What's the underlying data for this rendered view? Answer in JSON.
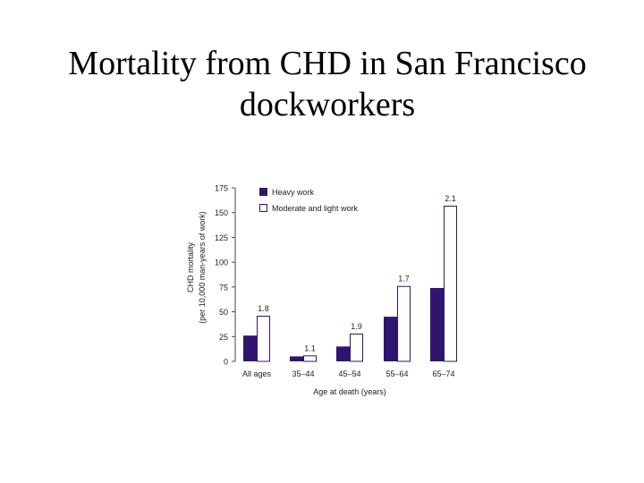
{
  "slide": {
    "title_line1": "Mortality from CHD in San Francisco",
    "title_line2": "dockworkers"
  },
  "chart_data": {
    "type": "bar",
    "ylabel_line1": "CHD mortality",
    "ylabel_line2": "(per 10,000 man-years of work)",
    "xlabel": "Age at death (years)",
    "ylim": [
      0,
      175
    ],
    "yticks": [
      0,
      25,
      50,
      75,
      100,
      125,
      150,
      175
    ],
    "categories": [
      "All ages",
      "35–44",
      "45–54",
      "55–64",
      "65–74"
    ],
    "series": [
      {
        "name": "Heavy work",
        "values": [
          26,
          5,
          15,
          45,
          74
        ],
        "color": "#2f1470",
        "fill": "solid"
      },
      {
        "name": "Moderate and light work",
        "values": [
          46,
          6,
          28,
          76,
          157
        ],
        "color": "#2f1470",
        "fill": "white"
      }
    ],
    "ratio_labels": [
      "1.8",
      "1.1",
      "1.9",
      "1.7",
      "2.1"
    ],
    "grid": false,
    "legend_position": "top-left"
  }
}
